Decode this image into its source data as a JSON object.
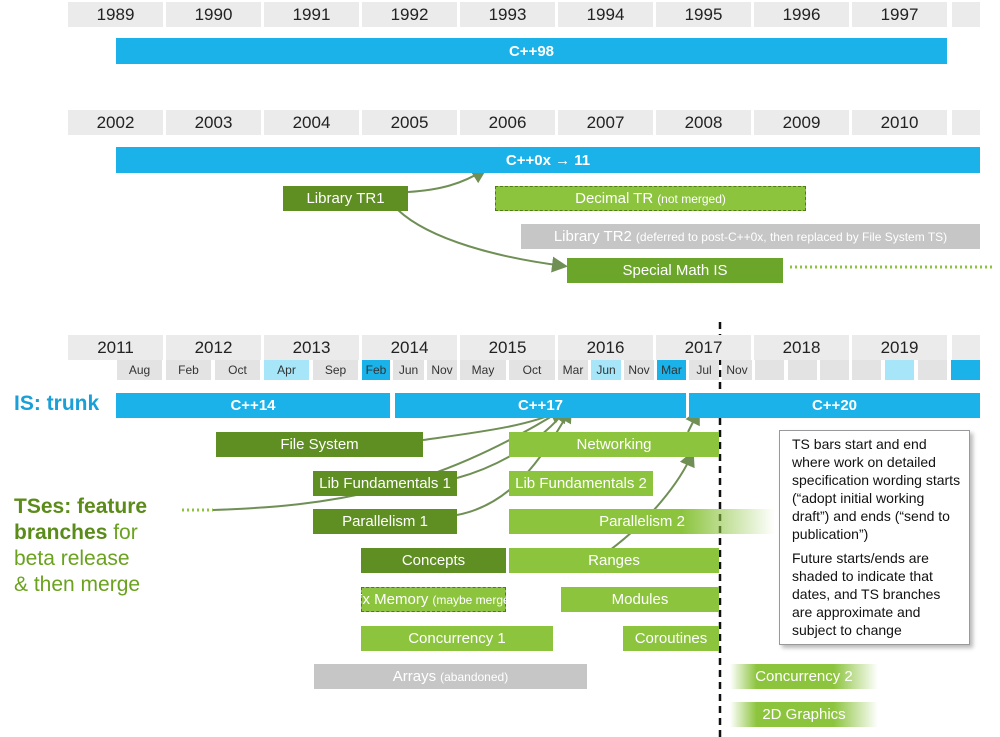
{
  "era1": {
    "years": [
      "1989",
      "1990",
      "1991",
      "1992",
      "1993",
      "1994",
      "1995",
      "1996",
      "1997"
    ],
    "trunk": "C++98"
  },
  "era2": {
    "years": [
      "2002",
      "2003",
      "2004",
      "2005",
      "2006",
      "2007",
      "2008",
      "2009",
      "2010"
    ],
    "trunk": "C++0x → 11",
    "branches": [
      {
        "label": "Library TR1"
      },
      {
        "label": "Decimal TR",
        "note": "(not merged)"
      },
      {
        "label": "Library TR2",
        "note": "(deferred to post-C++0x, then replaced by File System TS)"
      },
      {
        "label": "Special Math IS"
      }
    ]
  },
  "era3": {
    "years": [
      "2011",
      "2012",
      "2013",
      "2014",
      "2015",
      "2016",
      "2017",
      "2018",
      "2019"
    ],
    "months": [
      "Aug",
      "Feb",
      "Oct",
      "Apr",
      "Sep",
      "Feb",
      "Jun",
      "Nov",
      "May",
      "Oct",
      "Mar",
      "Jun",
      "Nov",
      "Mar",
      "Jul",
      "Nov"
    ],
    "trunk_label": "IS: trunk",
    "trunk": [
      "C++14",
      "C++17",
      "C++20"
    ],
    "branches_label": [
      {
        "bold": "TSes: feature"
      },
      {
        "bold": "branches",
        "normal": "for"
      },
      {
        "normal": "beta release"
      },
      {
        "normal": "& then merge"
      }
    ],
    "branches": [
      {
        "label": "File System"
      },
      {
        "label": "Networking"
      },
      {
        "label": "Lib Fundamentals 1"
      },
      {
        "label": "Lib Fundamentals 2"
      },
      {
        "label": "Parallelism 1"
      },
      {
        "label": "Parallelism 2"
      },
      {
        "label": "Concepts"
      },
      {
        "label": "Ranges"
      },
      {
        "label": "Tx Memory",
        "note": "(maybe merge)"
      },
      {
        "label": "Modules"
      },
      {
        "label": "Concurrency 1"
      },
      {
        "label": "Coroutines"
      },
      {
        "label": "Arrays",
        "note": "(abandoned)"
      },
      {
        "label": "Concurrency 2"
      },
      {
        "label": "2D Graphics"
      }
    ],
    "note": [
      "TS bars start and end where work on detailed specification wording starts (“adopt initial working draft”) and ends (“send to publication”)",
      "Future starts/ends are shaded to indicate that dates, and TS branches are approximate and subject to change"
    ]
  }
}
